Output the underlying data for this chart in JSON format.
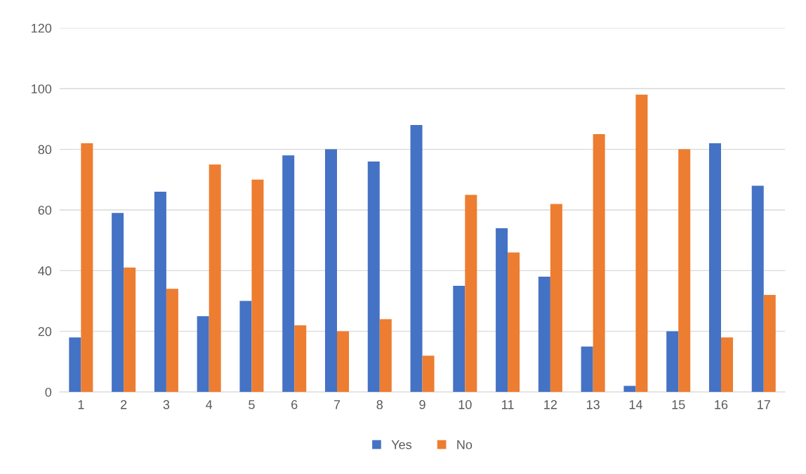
{
  "chart_data": {
    "type": "bar",
    "categories": [
      "1",
      "2",
      "3",
      "4",
      "5",
      "6",
      "7",
      "8",
      "9",
      "10",
      "11",
      "12",
      "13",
      "14",
      "15",
      "16",
      "17"
    ],
    "series": [
      {
        "name": "Yes",
        "color": "#4472c4",
        "values": [
          18,
          59,
          66,
          25,
          30,
          78,
          80,
          76,
          88,
          35,
          54,
          38,
          15,
          2,
          20,
          82,
          68
        ]
      },
      {
        "name": "No",
        "color": "#ed7d31",
        "values": [
          82,
          41,
          34,
          75,
          70,
          22,
          20,
          24,
          12,
          65,
          46,
          62,
          85,
          98,
          80,
          18,
          32
        ]
      }
    ],
    "ylim": [
      0,
      120
    ],
    "yticks": [
      0,
      20,
      40,
      60,
      80,
      100,
      120
    ],
    "grid": "y",
    "legend": "bottom"
  }
}
